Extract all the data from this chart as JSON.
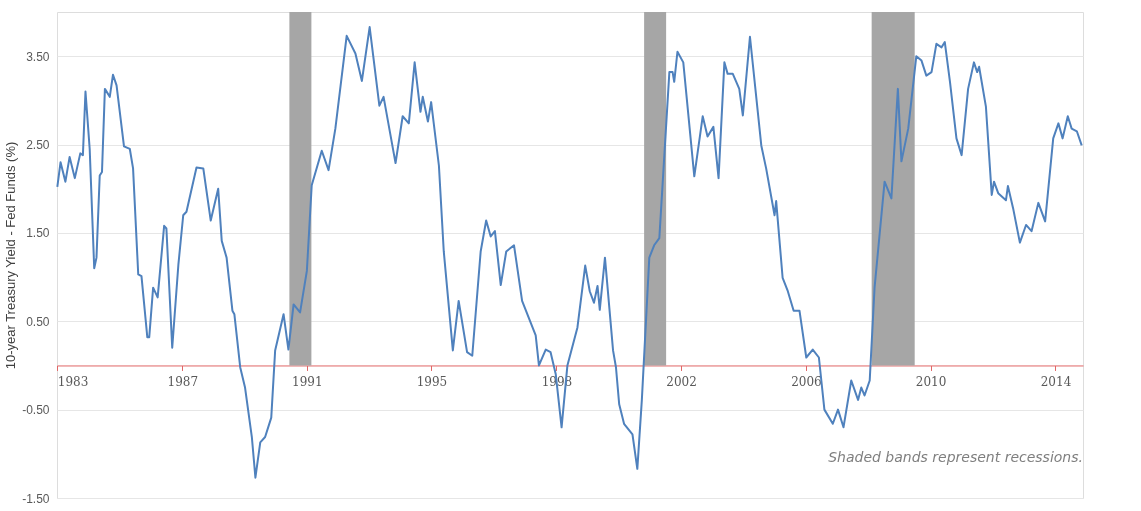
{
  "chart_data": {
    "type": "line",
    "ylabel": "10-year Treasury Yield - Fed Funds (%)",
    "xlim": [
      1983,
      2014.7
    ],
    "xticks": [
      {
        "value": 1983.01,
        "label": "1983"
      },
      {
        "value": 1986.87,
        "label": "1987"
      },
      {
        "value": 1990.72,
        "label": "1991"
      },
      {
        "value": 1994.57,
        "label": "1995"
      },
      {
        "value": 1998.43,
        "label": "1998"
      },
      {
        "value": 2002.28,
        "label": "2002"
      },
      {
        "value": 2006.14,
        "label": "2006"
      },
      {
        "value": 2009.99,
        "label": "2010"
      },
      {
        "value": 2013.85,
        "label": "2014"
      }
    ],
    "ylim": [
      -1.5,
      4.0
    ],
    "yticks": [
      {
        "value": 3.5,
        "label": "3.50"
      },
      {
        "value": 2.5,
        "label": "2.50"
      },
      {
        "value": 1.5,
        "label": "1.50"
      },
      {
        "value": 0.5,
        "label": "0.50"
      },
      {
        "value": -0.5,
        "label": "-0.50"
      },
      {
        "value": -1.5,
        "label": "-1.50"
      }
    ],
    "grid": "y",
    "series": [
      {
        "color": "#4f81bd",
        "x": [
          1983.01,
          1983.11,
          1983.26,
          1983.39,
          1983.55,
          1983.72,
          1983.8,
          1983.88,
          1984.01,
          1984.15,
          1984.22,
          1984.32,
          1984.39,
          1984.48,
          1984.63,
          1984.73,
          1984.84,
          1985.07,
          1985.25,
          1985.35,
          1985.51,
          1985.61,
          1985.79,
          1985.85,
          1985.97,
          1986.11,
          1986.31,
          1986.38,
          1986.56,
          1986.75,
          1986.9,
          1987.0,
          1987.31,
          1987.52,
          1987.75,
          1987.98,
          1988.09,
          1988.24,
          1988.42,
          1988.48,
          1988.66,
          1988.81,
          1989.02,
          1989.13,
          1989.28,
          1989.43,
          1989.62,
          1989.74,
          1990.0,
          1990.15,
          1990.31,
          1990.51,
          1990.72,
          1990.87,
          1991.18,
          1991.39,
          1991.6,
          1991.95,
          1992.22,
          1992.42,
          1992.66,
          1992.96,
          1993.09,
          1993.46,
          1993.68,
          1993.87,
          1994.05,
          1994.23,
          1994.3,
          1994.46,
          1994.56,
          1994.8,
          1994.95,
          1995.23,
          1995.41,
          1995.67,
          1995.83,
          1996.09,
          1996.26,
          1996.4,
          1996.53,
          1996.71,
          1996.88,
          1997.12,
          1997.37,
          1997.79,
          1997.89,
          1998.1,
          1998.25,
          1998.41,
          1998.59,
          1998.77,
          1999.08,
          1999.32,
          1999.46,
          1999.59,
          1999.7,
          1999.77,
          1999.93,
          2000.18,
          2000.27,
          2000.37,
          2000.52,
          2000.78,
          2000.93,
          2001.07,
          2001.3,
          2001.45,
          2001.61,
          2001.92,
          2002.02,
          2002.07,
          2002.17,
          2002.35,
          2002.69,
          2002.95,
          2003.1,
          2003.28,
          2003.44,
          2003.62,
          2003.72,
          2003.88,
          2004.08,
          2004.19,
          2004.41,
          2004.76,
          2004.91,
          2005.17,
          2005.22,
          2005.42,
          2005.58,
          2005.76,
          2005.94,
          2006.15,
          2006.35,
          2006.54,
          2006.71,
          2006.97,
          2007.13,
          2007.3,
          2007.54,
          2007.75,
          2007.85,
          2007.95,
          2008.11,
          2008.26,
          2008.57,
          2008.78,
          2008.98,
          2009.09,
          2009.3,
          2009.55,
          2009.71,
          2009.86,
          2010.02,
          2010.17,
          2010.33,
          2010.43,
          2010.59,
          2010.79,
          2010.95,
          2011.15,
          2011.33,
          2011.43,
          2011.49,
          2011.7,
          2011.88,
          2011.95,
          2012.08,
          2012.32,
          2012.38,
          2012.54,
          2012.75,
          2012.94,
          2013.11,
          2013.32,
          2013.53,
          2013.78,
          2013.94,
          2014.07,
          2014.23,
          2014.35,
          2014.51,
          2014.66
        ],
        "values": [
          2.02,
          2.3,
          2.08,
          2.36,
          2.12,
          2.4,
          2.38,
          3.1,
          2.45,
          1.1,
          1.22,
          2.15,
          2.19,
          3.13,
          3.04,
          3.29,
          3.17,
          2.48,
          2.45,
          2.23,
          1.03,
          1.01,
          0.32,
          0.32,
          0.88,
          0.77,
          1.58,
          1.55,
          0.2,
          1.14,
          1.7,
          1.74,
          2.24,
          2.23,
          1.64,
          2.0,
          1.41,
          1.22,
          0.62,
          0.58,
          -0.02,
          -0.25,
          -0.81,
          -1.27,
          -0.87,
          -0.81,
          -0.59,
          0.17,
          0.58,
          0.18,
          0.69,
          0.6,
          1.07,
          2.04,
          2.43,
          2.21,
          2.68,
          3.73,
          3.53,
          3.22,
          3.83,
          2.94,
          3.04,
          2.29,
          2.82,
          2.74,
          3.43,
          2.87,
          3.04,
          2.76,
          2.98,
          2.26,
          1.29,
          0.17,
          0.73,
          0.15,
          0.11,
          1.29,
          1.64,
          1.46,
          1.52,
          0.91,
          1.29,
          1.36,
          0.73,
          0.34,
          0.0,
          0.18,
          0.15,
          -0.1,
          -0.7,
          0.0,
          0.43,
          1.13,
          0.84,
          0.71,
          0.9,
          0.63,
          1.22,
          0.17,
          -0.02,
          -0.44,
          -0.66,
          -0.78,
          -1.17,
          -0.39,
          1.22,
          1.36,
          1.44,
          3.32,
          3.32,
          3.21,
          3.55,
          3.43,
          2.14,
          2.82,
          2.59,
          2.7,
          2.12,
          3.43,
          3.3,
          3.3,
          3.13,
          2.83,
          3.72,
          2.49,
          2.23,
          1.7,
          1.86,
          0.99,
          0.84,
          0.62,
          0.62,
          0.09,
          0.18,
          0.09,
          -0.5,
          -0.66,
          -0.5,
          -0.7,
          -0.17,
          -0.39,
          -0.25,
          -0.34,
          -0.17,
          0.88,
          2.08,
          1.89,
          3.13,
          2.31,
          2.68,
          3.5,
          3.45,
          3.28,
          3.32,
          3.64,
          3.6,
          3.66,
          3.21,
          2.57,
          2.38,
          3.13,
          3.43,
          3.32,
          3.38,
          2.93,
          1.93,
          2.08,
          1.95,
          1.87,
          2.03,
          1.78,
          1.39,
          1.59,
          1.52,
          1.84,
          1.63,
          2.57,
          2.74,
          2.57,
          2.82,
          2.68,
          2.65,
          2.49
        ]
      }
    ],
    "bands": [
      {
        "axis": "x",
        "from": 1990.18,
        "to": 1990.86,
        "color": "#a6a6a6"
      },
      {
        "axis": "x",
        "from": 2001.14,
        "to": 2001.82,
        "color": "#a6a6a6"
      },
      {
        "axis": "x",
        "from": 2008.17,
        "to": 2009.5,
        "color": "#a6a6a6"
      }
    ],
    "annotations": [
      "Shaded bands represent recessions."
    ]
  }
}
